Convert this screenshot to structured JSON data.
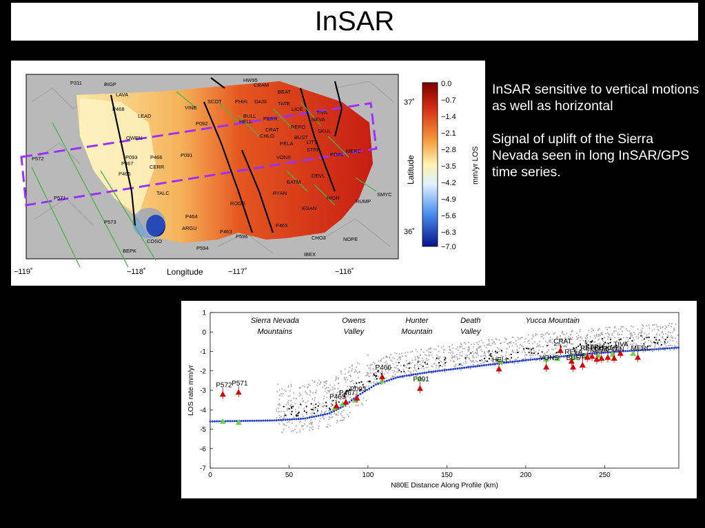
{
  "slide": {
    "title": "InSAR",
    "bullets": [
      "InSAR sensitive to vertical motions as well as horizontal",
      "Signal of uplift of the Sierra Nevada seen in long InSAR/GPS time series."
    ]
  },
  "map": {
    "xlabel": "Longitude",
    "ylabel": "Latitude",
    "lon_ticks": [
      "−119˚",
      "−118˚",
      "−117˚",
      "−116˚"
    ],
    "lat_ticks": [
      "37˚",
      "36˚"
    ],
    "colorbar": {
      "label": "mm/yr LOS",
      "ticks": [
        "0.0",
        "−0.7",
        "−1.4",
        "−2.1",
        "−2.8",
        "−3.5",
        "−4.2",
        "−4.9",
        "−5.6",
        "−6.3",
        "−7.0"
      ]
    },
    "stations": [
      "P311",
      "BIGP",
      "HW95",
      "CRAM",
      "BEAT",
      "P468",
      "LAVA",
      "SCOT",
      "PHIN",
      "OASI",
      "TATE",
      "VINE",
      "LICE",
      "TIVA",
      "LEAD",
      "P092",
      "BULL",
      "PERR",
      "NEVA",
      "CRAT",
      "REPO",
      "SKUL",
      "OWEN",
      "HELL",
      "CHLO",
      "BUST",
      "RELA",
      "LITT",
      "P093",
      "P466",
      "P091",
      "STRI",
      "POIN",
      "MERC",
      "P572",
      "P467",
      "CERR",
      "VONS",
      "P465",
      "DEVL",
      "TALC",
      "BATM",
      "EGAN",
      "RYAN",
      "HIGH",
      "SMYC",
      "P571",
      "ROGE",
      "RUMP",
      "P464",
      "P573",
      "ARGU",
      "P463",
      "P596",
      "P465",
      "COSO",
      "P594",
      "BEPK",
      "IBEX",
      "NOPE",
      "CHO3"
    ]
  },
  "chart_data": {
    "type": "scatter",
    "title": "",
    "xlabel": "N80E Distance Along Profile (km)",
    "ylabel": "LOS rate mm/yr",
    "xlim": [
      0,
      297
    ],
    "ylim": [
      -7,
      1
    ],
    "x_ticks": [
      0,
      50,
      100,
      150,
      200,
      250
    ],
    "y_ticks": [
      1,
      0,
      -1,
      -2,
      -3,
      -4,
      -5,
      -6,
      -7
    ],
    "region_labels": [
      {
        "lines": [
          "Sierra Nevada",
          "Mountains"
        ],
        "x": 41
      },
      {
        "lines": [
          "Owens",
          "Valley"
        ],
        "x": 91
      },
      {
        "lines": [
          "Hunter",
          "Mountain"
        ],
        "x": 131
      },
      {
        "lines": [
          "Death",
          "Valley"
        ],
        "x": 165
      },
      {
        "lines": [
          "Yucca Mountain",
          ""
        ],
        "x": 217
      }
    ],
    "series": [
      {
        "kind": "red-triangles",
        "color": "#d40000",
        "points": [
          [
            8,
            -3.2,
            "P572"
          ],
          [
            18,
            -3.1,
            "P571"
          ],
          [
            80,
            -3.8,
            "P465"
          ],
          [
            86,
            -3.6,
            "P467"
          ],
          [
            93,
            -3.4,
            "P093"
          ],
          [
            109,
            -2.3,
            "P466"
          ],
          [
            133,
            -2.9,
            "P091"
          ],
          [
            183,
            -1.9,
            "HELL"
          ],
          [
            213,
            -1.8,
            "VONS"
          ],
          [
            222,
            -0.95,
            "CRAT"
          ],
          [
            229,
            -1.5,
            "RELA"
          ],
          [
            230,
            -1.8,
            "BUST"
          ],
          [
            236,
            -1.7,
            "LICE"
          ],
          [
            239,
            -1.3,
            "REPO"
          ],
          [
            242,
            -1.25,
            "STRI"
          ],
          [
            245,
            -1.4,
            "NEVA"
          ],
          [
            248,
            -1.35,
            "LITT"
          ],
          [
            252,
            -1.3,
            "SKUL"
          ],
          [
            256,
            -1.35,
            "POIN"
          ],
          [
            260,
            -1.1,
            "TIVA"
          ],
          [
            271,
            -1.3,
            "MERC"
          ]
        ]
      },
      {
        "kind": "green-triangles",
        "color": "#6fd34a",
        "points": [
          [
            8,
            -4.6
          ],
          [
            18,
            -4.65
          ],
          [
            79,
            -3.9
          ],
          [
            84,
            -3.7
          ],
          [
            92,
            -3.5
          ],
          [
            109,
            -2.5
          ],
          [
            133,
            -2.4
          ],
          [
            184,
            -1.5
          ],
          [
            213,
            -1.4
          ],
          [
            220,
            -1.35
          ],
          [
            230,
            -1.3
          ],
          [
            238,
            -1.2
          ],
          [
            246,
            -1.2
          ],
          [
            255,
            -1.15
          ],
          [
            268,
            -1.1
          ]
        ]
      },
      {
        "kind": "blue-model",
        "color": "#1e3ddc",
        "x": [
          0,
          40,
          60,
          75,
          85,
          95,
          105,
          120,
          140,
          160,
          180,
          200,
          220,
          240,
          260,
          280,
          297
        ],
        "y": [
          -4.6,
          -4.55,
          -4.45,
          -4.2,
          -3.8,
          -3.2,
          -2.7,
          -2.3,
          -2.05,
          -1.85,
          -1.65,
          -1.45,
          -1.28,
          -1.12,
          -1.0,
          -0.9,
          -0.8
        ]
      }
    ]
  }
}
